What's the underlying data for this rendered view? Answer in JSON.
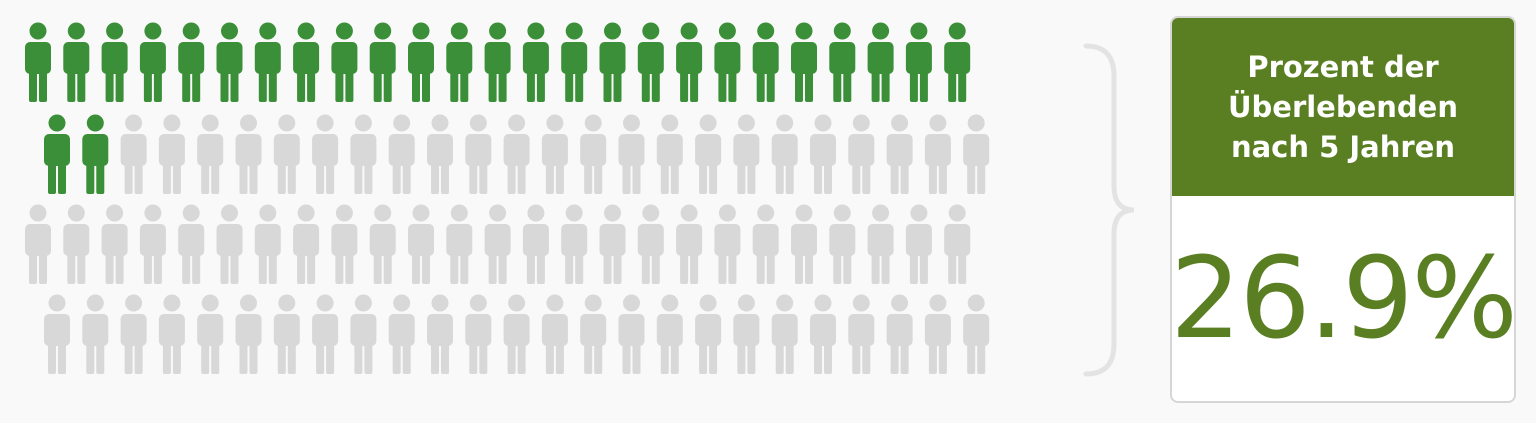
{
  "chart_data": {
    "type": "pictograph",
    "total_icons": 100,
    "highlighted_icons": 27,
    "value_percent": 26.9,
    "colors": {
      "highlighted": "#3a8f38",
      "base": "#d7d8d7",
      "accent": "#5a7f22"
    }
  },
  "stat_card": {
    "label_lines": [
      "Prozent der",
      "Überlebenden",
      "nach 5 Jahren"
    ],
    "value": "26.9%"
  }
}
